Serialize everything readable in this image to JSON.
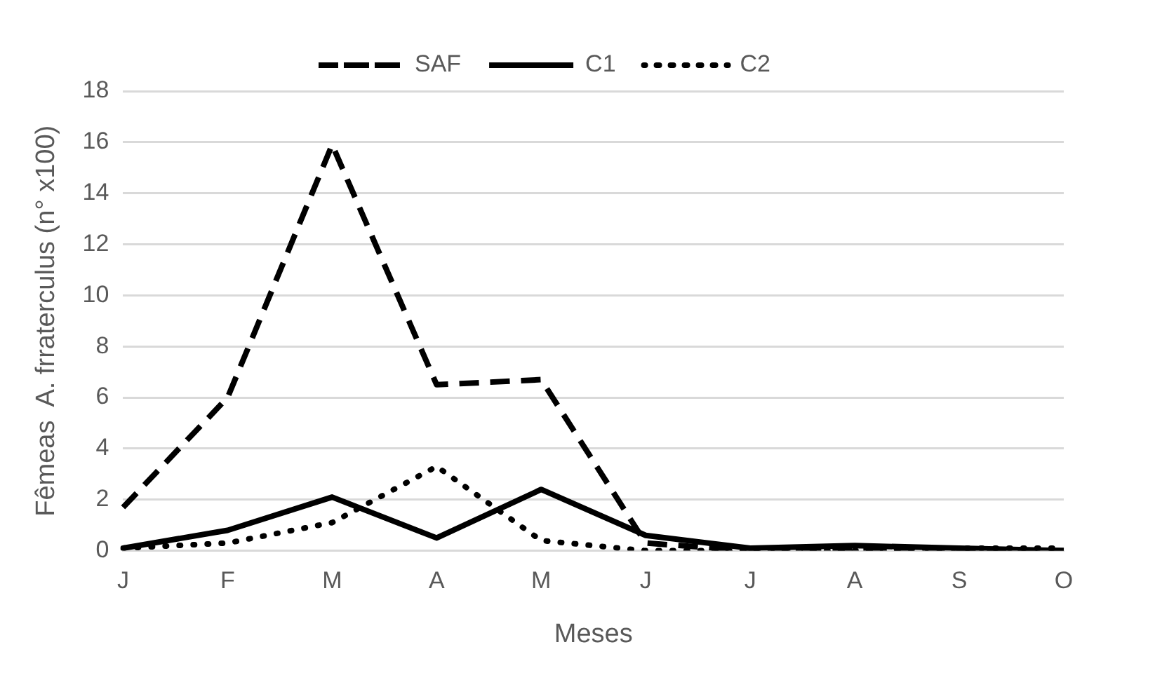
{
  "chart_data": {
    "type": "line",
    "xlabel": "Meses",
    "ylabel": "Fêmeas  A. frraterculus (n° x100)",
    "categories": [
      "J",
      "F",
      "M",
      "A",
      "M",
      "J",
      "J",
      "A",
      "S",
      "O"
    ],
    "series": [
      {
        "name": "SAF",
        "color": "#000000",
        "line_style": "dashed",
        "values": [
          1.7,
          6,
          15.9,
          6.5,
          6.7,
          0.3,
          0,
          0,
          0,
          0
        ]
      },
      {
        "name": "C1",
        "color": "#000000",
        "line_style": "solid",
        "values": [
          0.1,
          0.8,
          2.1,
          0.5,
          2.4,
          0.6,
          0.1,
          0.2,
          0.1,
          0
        ]
      },
      {
        "name": "C2",
        "color": "#000000",
        "line_style": "dotted",
        "values": [
          0.1,
          0.3,
          1.1,
          3.3,
          0.4,
          0,
          0,
          0,
          0.1,
          0.1
        ]
      }
    ],
    "ylim": [
      0,
      18
    ],
    "yticks": [
      0,
      2,
      4,
      6,
      8,
      10,
      12,
      14,
      16,
      18
    ],
    "grid": "y",
    "legend": "top",
    "marker": "none"
  }
}
